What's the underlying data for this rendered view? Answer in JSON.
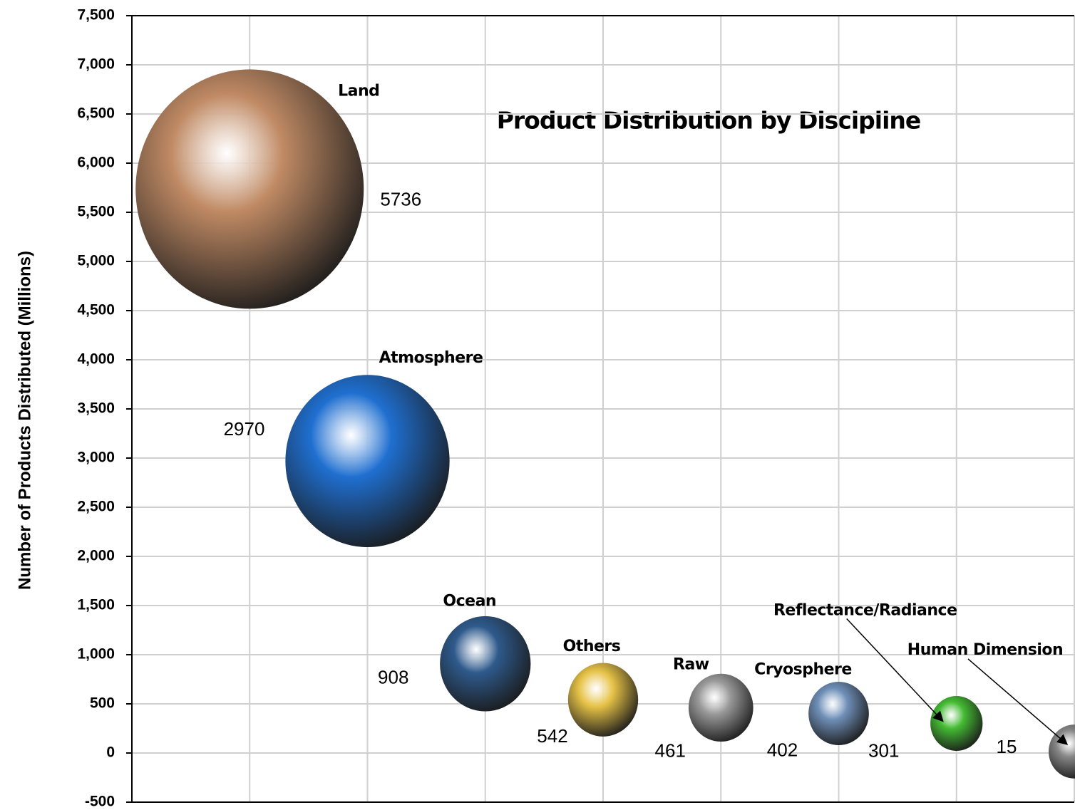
{
  "chart_data": {
    "type": "bubble",
    "title": "Product Distribution by Discipline",
    "y_label": "Number of Products Distributed (Millions)",
    "categories": [
      "Land",
      "Atmosphere",
      "Ocean",
      "Others",
      "Raw",
      "Cryosphere",
      "Reflectance/Radiance",
      "Human Dimension"
    ],
    "x": [
      1,
      2,
      3,
      4,
      5,
      6,
      7,
      8
    ],
    "values": [
      5736,
      2970,
      908,
      542,
      461,
      402,
      301,
      15
    ],
    "colors": [
      "#c08a64",
      "#1f6fd0",
      "#2e5a8c",
      "#e6c246",
      "#9a9a9a",
      "#6f8fb8",
      "#44bb33",
      "#888888"
    ],
    "xlim": [
      0,
      8
    ],
    "xticks": [
      1,
      2,
      3,
      4,
      5,
      6,
      7,
      8
    ],
    "ylim": [
      -500,
      7500
    ],
    "yticks": [
      -500,
      0,
      500,
      {
        "value": 1000,
        "label": "1,000"
      },
      {
        "value": 1500,
        "label": "1,500"
      },
      {
        "value": 2000,
        "label": "2,000"
      },
      {
        "value": 2500,
        "label": "2,500"
      },
      {
        "value": 3000,
        "label": "3,000"
      },
      {
        "value": 3500,
        "label": "3,500"
      },
      {
        "value": 4000,
        "label": "4,000"
      },
      {
        "value": 4500,
        "label": "4,500"
      },
      {
        "value": 5000,
        "label": "5,000"
      },
      {
        "value": 5500,
        "label": "5,500"
      },
      {
        "value": 6000,
        "label": "6,000"
      },
      {
        "value": 6500,
        "label": "6,500"
      },
      {
        "value": 7000,
        "label": "7,000"
      },
      {
        "value": 7500,
        "label": "7,500"
      }
    ],
    "grid": true
  }
}
